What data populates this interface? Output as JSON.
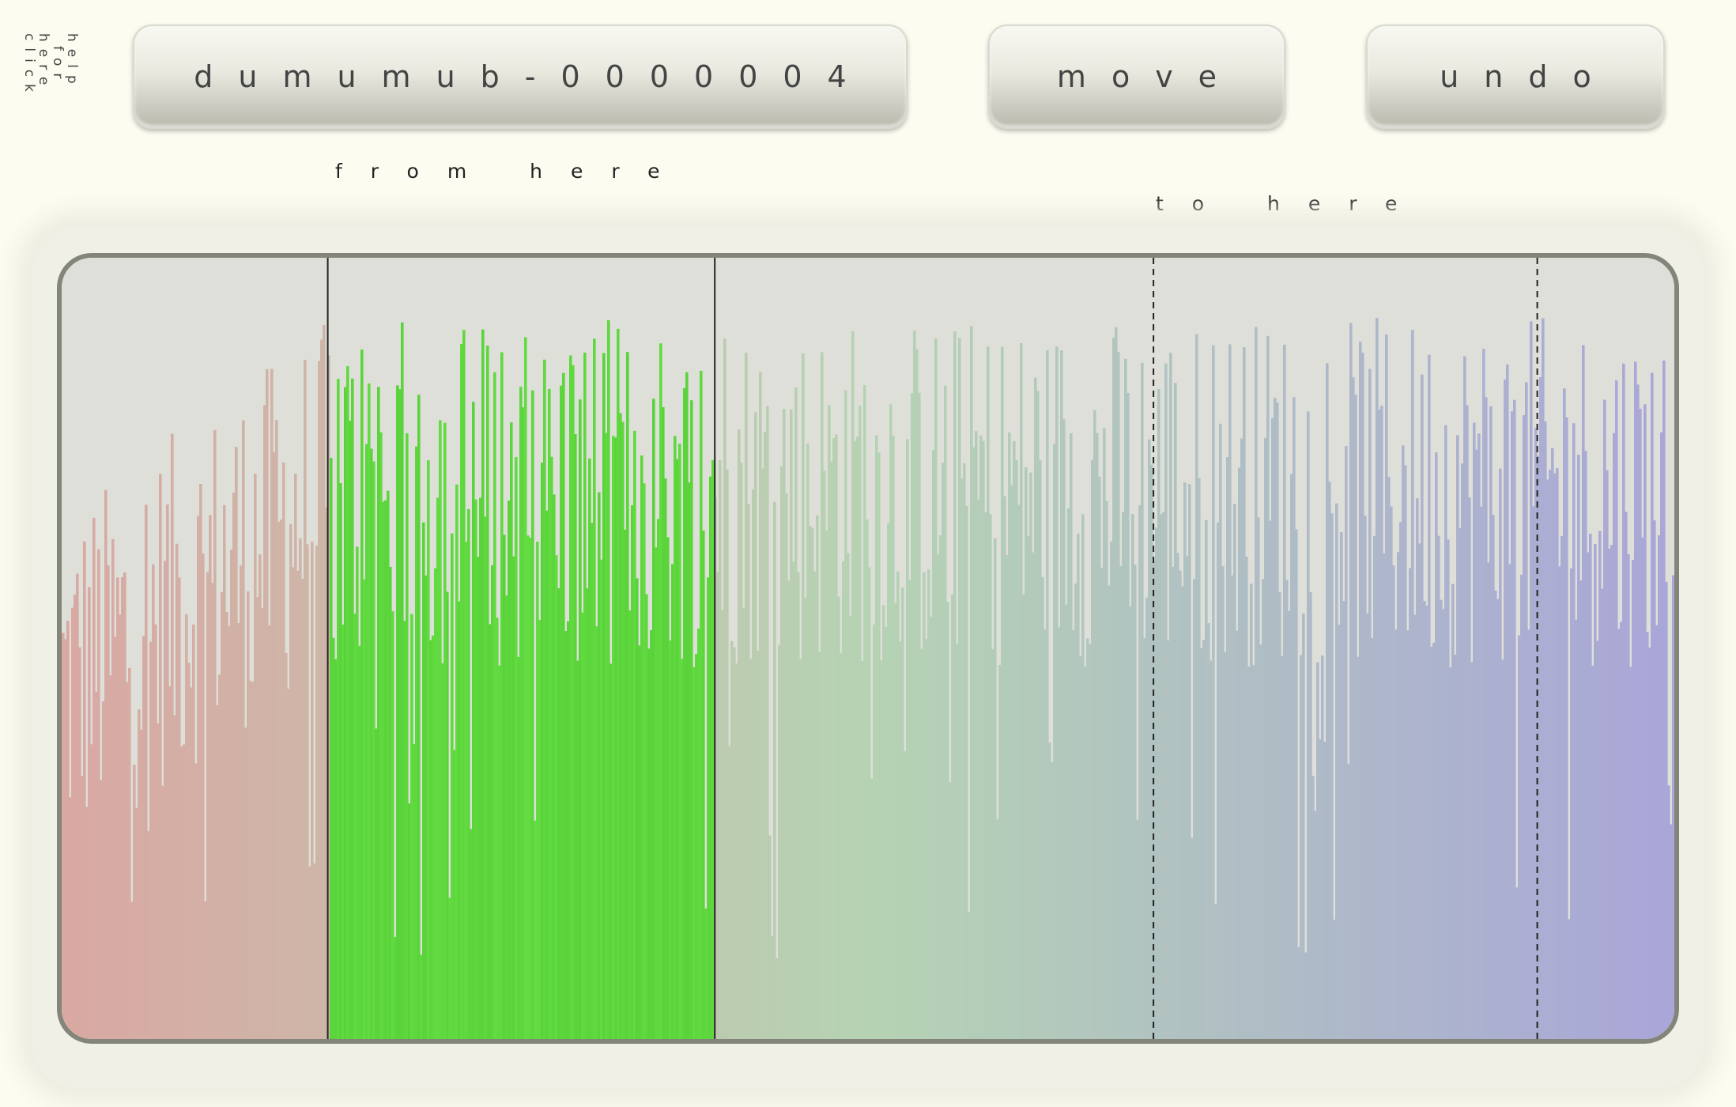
{
  "help": {
    "line1": "click",
    "line2": "here",
    "line3": "for",
    "line4": "help"
  },
  "toolbar": {
    "name_label": "dumumub-0000004",
    "move_label": "move",
    "undo_label": "undo"
  },
  "markers": {
    "from_label": "from here",
    "to_label": "to here"
  },
  "chart_data": {
    "type": "bar",
    "selection": {
      "from": [
        0.165,
        0.405
      ],
      "to": [
        0.677,
        0.915
      ]
    },
    "colors": {
      "start": "#d9a8a2",
      "mid": "#b5d3b3",
      "end": "#a9a6d8",
      "selected": "#62dc40",
      "background": "#dfdfda",
      "marker": "#222222"
    }
  }
}
